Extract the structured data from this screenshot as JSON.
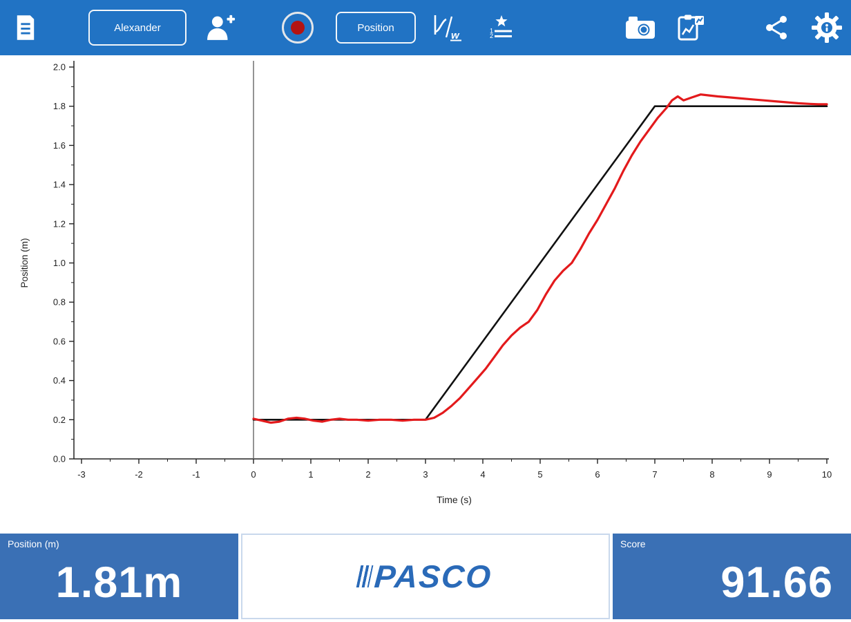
{
  "toolbar": {
    "bg_color": "#2173c4",
    "user_button_label": "Alexander",
    "position_button_label": "Position",
    "record_dot_color": "#b31312",
    "icons": [
      "file-icon",
      "add-user-icon",
      "record-icon",
      "graph-tools-icon",
      "scoreboard-icon",
      "camera-icon",
      "journal-icon",
      "share-icon",
      "settings-gear-icon"
    ]
  },
  "chart_data": {
    "type": "line",
    "title": "",
    "xlabel": "Time (s)",
    "ylabel": "Position (m)",
    "xlim": [
      -3,
      10
    ],
    "ylim": [
      0,
      2
    ],
    "xticks": [
      -3,
      -2,
      -1,
      0,
      1,
      2,
      3,
      4,
      5,
      6,
      7,
      8,
      9,
      10
    ],
    "yticks": [
      0,
      0.2,
      0.4,
      0.6,
      0.8,
      1.0,
      1.2,
      1.4,
      1.6,
      1.8,
      2.0
    ],
    "grid": false,
    "legend": false,
    "series": [
      {
        "name": "target-path",
        "color": "#111111",
        "width": 2.6,
        "points": [
          [
            0,
            0.2
          ],
          [
            3,
            0.2
          ],
          [
            7,
            1.8
          ],
          [
            10,
            1.8
          ]
        ]
      },
      {
        "name": "recorded-position",
        "color": "#e31a1c",
        "width": 3.2,
        "points": [
          [
            0,
            0.205
          ],
          [
            0.15,
            0.195
          ],
          [
            0.3,
            0.185
          ],
          [
            0.45,
            0.19
          ],
          [
            0.6,
            0.205
          ],
          [
            0.75,
            0.21
          ],
          [
            0.9,
            0.205
          ],
          [
            1.05,
            0.195
          ],
          [
            1.2,
            0.19
          ],
          [
            1.35,
            0.2
          ],
          [
            1.5,
            0.205
          ],
          [
            1.65,
            0.2
          ],
          [
            1.8,
            0.2
          ],
          [
            2.0,
            0.195
          ],
          [
            2.2,
            0.2
          ],
          [
            2.4,
            0.2
          ],
          [
            2.6,
            0.195
          ],
          [
            2.8,
            0.2
          ],
          [
            3.0,
            0.2
          ],
          [
            3.15,
            0.21
          ],
          [
            3.3,
            0.235
          ],
          [
            3.45,
            0.27
          ],
          [
            3.6,
            0.31
          ],
          [
            3.75,
            0.36
          ],
          [
            3.9,
            0.41
          ],
          [
            4.05,
            0.46
          ],
          [
            4.2,
            0.52
          ],
          [
            4.35,
            0.58
          ],
          [
            4.5,
            0.63
          ],
          [
            4.65,
            0.67
          ],
          [
            4.8,
            0.7
          ],
          [
            4.95,
            0.76
          ],
          [
            5.1,
            0.84
          ],
          [
            5.25,
            0.91
          ],
          [
            5.4,
            0.96
          ],
          [
            5.55,
            1.0
          ],
          [
            5.7,
            1.07
          ],
          [
            5.85,
            1.15
          ],
          [
            6.0,
            1.22
          ],
          [
            6.15,
            1.3
          ],
          [
            6.3,
            1.38
          ],
          [
            6.45,
            1.47
          ],
          [
            6.6,
            1.55
          ],
          [
            6.75,
            1.62
          ],
          [
            6.9,
            1.68
          ],
          [
            7.05,
            1.74
          ],
          [
            7.2,
            1.79
          ],
          [
            7.3,
            1.83
          ],
          [
            7.4,
            1.85
          ],
          [
            7.5,
            1.83
          ],
          [
            7.65,
            1.845
          ],
          [
            7.8,
            1.86
          ],
          [
            7.95,
            1.855
          ],
          [
            8.1,
            1.85
          ],
          [
            8.3,
            1.845
          ],
          [
            8.5,
            1.84
          ],
          [
            8.7,
            1.835
          ],
          [
            8.9,
            1.83
          ],
          [
            9.1,
            1.825
          ],
          [
            9.3,
            1.82
          ],
          [
            9.5,
            1.815
          ],
          [
            9.7,
            1.812
          ],
          [
            9.85,
            1.81
          ],
          [
            10,
            1.81
          ]
        ]
      }
    ]
  },
  "bottom": {
    "position_label": "Position (m)",
    "position_value": "1.81m",
    "logo_text": "PASCO",
    "score_label": "Score",
    "score_value": "91.66",
    "panel_color": "#3a70b5"
  }
}
